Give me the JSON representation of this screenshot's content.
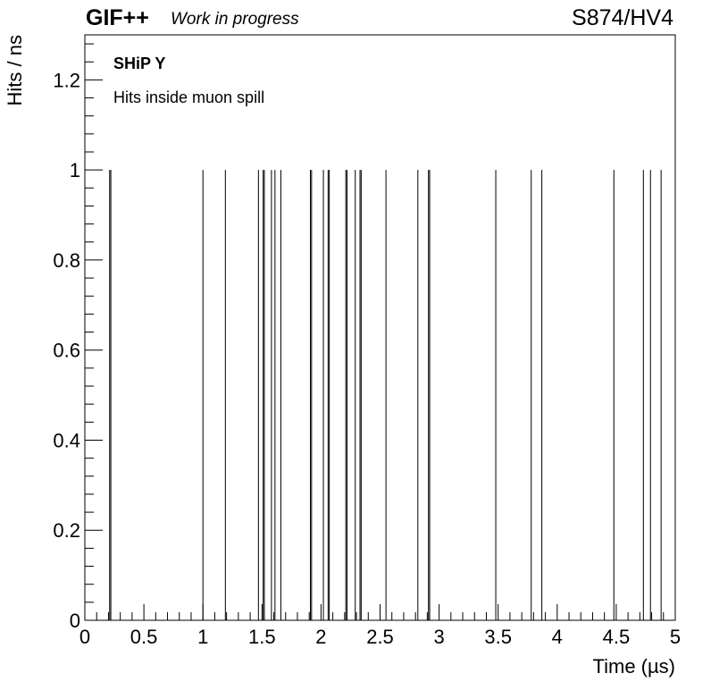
{
  "header": {
    "experiment": "GIF++",
    "status": "Work in progress",
    "run": "S874/HV4"
  },
  "chart_data": {
    "type": "bar",
    "title": "",
    "xlabel": "Time (µs)",
    "ylabel": "Hits / ns",
    "xlim": [
      0,
      5
    ],
    "ylim": [
      0,
      1.3
    ],
    "x_ticks": [
      "0",
      "0.5",
      "1",
      "1.5",
      "2",
      "2.5",
      "3",
      "3.5",
      "4",
      "4.5",
      "5"
    ],
    "y_ticks": [
      "0",
      "0.2",
      "0.4",
      "0.6",
      "0.8",
      "1",
      "1.2"
    ],
    "grid": false,
    "legend": "none",
    "annotations": [
      "SHiP Y",
      "Hits inside muon spill"
    ],
    "hit_times": [
      0.21,
      0.22,
      1.0,
      1.19,
      1.47,
      1.51,
      1.52,
      1.58,
      1.61,
      1.66,
      1.91,
      1.92,
      2.02,
      2.06,
      2.07,
      2.21,
      2.22,
      2.29,
      2.33,
      2.34,
      2.55,
      2.82,
      2.91,
      2.92,
      3.48,
      3.78,
      3.87,
      4.48,
      4.73,
      4.79,
      4.88
    ],
    "hit_value": 1
  }
}
